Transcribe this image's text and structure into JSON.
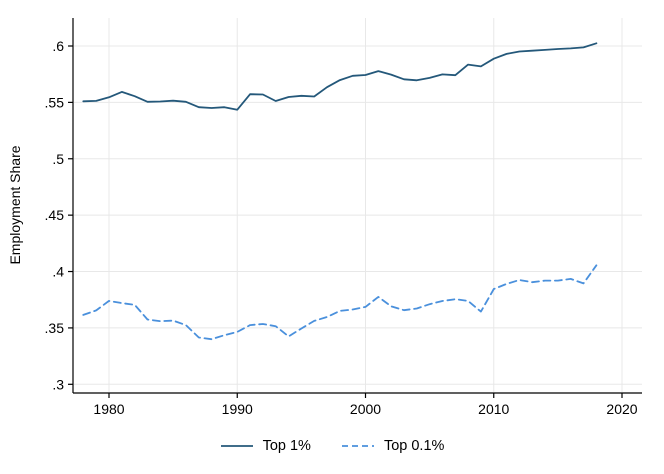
{
  "chart_data": {
    "type": "line",
    "title": "",
    "xlabel": "",
    "ylabel": "Employment Share",
    "grid": true,
    "legend_position": "bottom-center",
    "xlim": [
      1977.2,
      2021.5
    ],
    "ylim": [
      0.292,
      0.615
    ],
    "x_ticks": [
      {
        "value": 1980,
        "label": "1980"
      },
      {
        "value": 1990,
        "label": "1990"
      },
      {
        "value": 2000,
        "label": "2000"
      },
      {
        "value": 2010,
        "label": "2010"
      },
      {
        "value": 2020,
        "label": "2020"
      }
    ],
    "y_ticks": [
      {
        "value": 0.6,
        "label": ".6"
      },
      {
        "value": 0.55,
        "label": ".55"
      },
      {
        "value": 0.5,
        "label": ".5"
      },
      {
        "value": 0.45,
        "label": ".45"
      },
      {
        "value": 0.4,
        "label": ".4"
      },
      {
        "value": 0.35,
        "label": ".35"
      },
      {
        "value": 0.3,
        "label": ".3"
      }
    ],
    "x": [
      1978,
      1979,
      1980,
      1981,
      1982,
      1983,
      1984,
      1985,
      1986,
      1987,
      1988,
      1989,
      1990,
      1991,
      1992,
      1993,
      1994,
      1995,
      1996,
      1997,
      1998,
      1999,
      2000,
      2001,
      2002,
      2003,
      2004,
      2005,
      2006,
      2007,
      2008,
      2009,
      2010,
      2011,
      2012,
      2013,
      2014,
      2015,
      2016,
      2017,
      2018
    ],
    "series": [
      {
        "name": "Top 1%",
        "style": "solid",
        "color": "#24587a",
        "values": [
          0.551,
          0.5513,
          0.5545,
          0.5593,
          0.5555,
          0.5505,
          0.5508,
          0.5515,
          0.5505,
          0.5457,
          0.545,
          0.5457,
          0.5435,
          0.5573,
          0.557,
          0.5512,
          0.5548,
          0.5558,
          0.5552,
          0.5635,
          0.5698,
          0.5736,
          0.5743,
          0.5777,
          0.5746,
          0.5705,
          0.5696,
          0.5717,
          0.5748,
          0.5741,
          0.5835,
          0.5819,
          0.5887,
          0.593,
          0.5951,
          0.5958,
          0.5965,
          0.5973,
          0.5979,
          0.5988,
          0.6024
        ]
      },
      {
        "name": "Top 0.1%",
        "style": "dashed",
        "color": "#4a90dc",
        "values": [
          0.3615,
          0.3655,
          0.374,
          0.372,
          0.3705,
          0.3575,
          0.356,
          0.3565,
          0.3525,
          0.3415,
          0.34,
          0.3435,
          0.3465,
          0.3525,
          0.3535,
          0.3515,
          0.3425,
          0.3495,
          0.3562,
          0.3597,
          0.3651,
          0.3663,
          0.3686,
          0.3775,
          0.3692,
          0.3657,
          0.3672,
          0.371,
          0.3739,
          0.3755,
          0.374,
          0.3645,
          0.3845,
          0.389,
          0.3925,
          0.3905,
          0.392,
          0.392,
          0.3935,
          0.3895,
          0.4055
        ]
      }
    ],
    "colors": {
      "background": "#ffffff",
      "grid": "#e8e8e8",
      "axis": "#000000",
      "text": "#000000"
    }
  }
}
